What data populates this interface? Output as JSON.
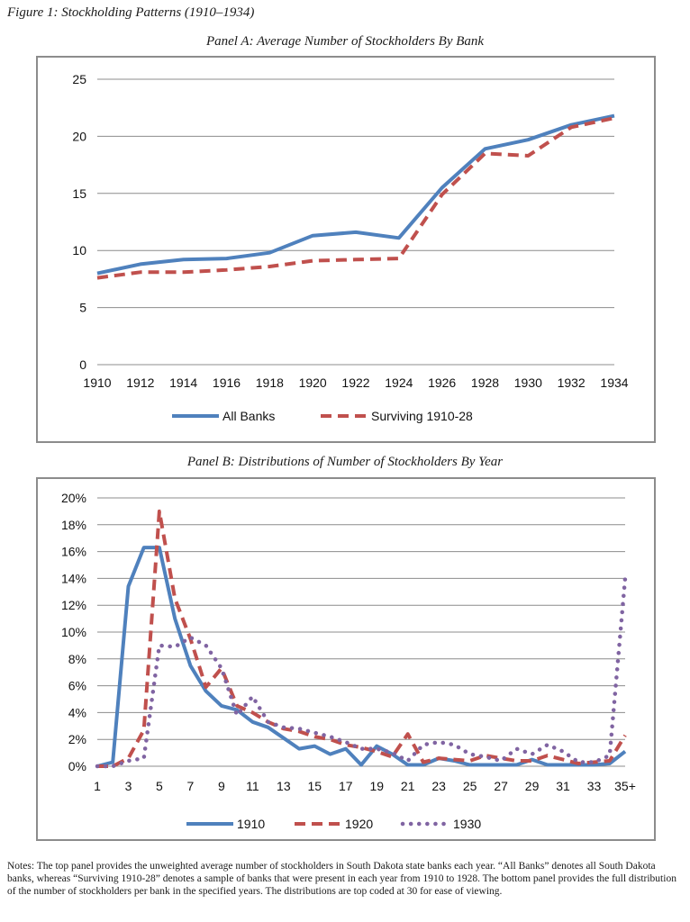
{
  "figure_title": "Figure 1: Stockholding Patterns (1910–1934)",
  "notes": "Notes: The top panel provides the unweighted average number of stockholders in South Dakota state banks each year. “All Banks” denotes all South Dakota banks, whereas “Surviving 1910-28” denotes a sample of banks that were present in each year from 1910 to 1928. The bottom panel provides the full distribution of the number of stockholders per bank in the specified years. The distributions are top coded at 30 for ease of viewing.",
  "colors": {
    "blue": "#4f81bd",
    "red": "#c0504d",
    "purple": "#8064a2",
    "grid": "#8c8c8c",
    "frame": "#8c8c8c"
  },
  "chart_data": [
    {
      "type": "line",
      "title": "Panel A: Average Number of Stockholders By Bank",
      "x": [
        1910,
        1912,
        1914,
        1916,
        1918,
        1920,
        1922,
        1924,
        1926,
        1928,
        1930,
        1932,
        1934
      ],
      "x_tick_labels": [
        "1910",
        "1912",
        "1914",
        "1916",
        "1918",
        "1920",
        "1922",
        "1924",
        "1926",
        "1928",
        "1930",
        "1932",
        "1934"
      ],
      "y_tick_labels": [
        "0",
        "5",
        "10",
        "15",
        "20",
        "25"
      ],
      "ylim": [
        0,
        25
      ],
      "grid": true,
      "legend_position": "bottom",
      "series": [
        {
          "name": "All Banks",
          "style": "solid",
          "color": "#4f81bd",
          "values": [
            8.0,
            8.8,
            9.2,
            9.3,
            9.8,
            11.3,
            11.6,
            11.1,
            15.5,
            18.9,
            19.7,
            21.0,
            21.8
          ]
        },
        {
          "name": "Surviving 1910-28",
          "style": "dashed",
          "color": "#c0504d",
          "values": [
            7.6,
            8.1,
            8.1,
            8.3,
            8.6,
            9.1,
            9.2,
            9.3,
            14.9,
            18.5,
            18.3,
            20.8,
            21.6
          ]
        }
      ]
    },
    {
      "type": "line",
      "title": "Panel B: Distributions of Number of Stockholders By Year",
      "x": [
        1,
        2,
        3,
        4,
        5,
        6,
        7,
        8,
        9,
        10,
        11,
        12,
        13,
        14,
        15,
        16,
        17,
        18,
        19,
        20,
        21,
        22,
        23,
        24,
        25,
        26,
        27,
        28,
        29,
        30,
        31,
        32,
        33,
        34,
        35
      ],
      "x_tick_labels": [
        "1",
        "3",
        "5",
        "7",
        "9",
        "11",
        "13",
        "15",
        "17",
        "19",
        "21",
        "23",
        "25",
        "27",
        "29",
        "31",
        "33",
        "35+"
      ],
      "y_tick_labels": [
        "0%",
        "2%",
        "4%",
        "6%",
        "8%",
        "10%",
        "12%",
        "14%",
        "16%",
        "18%",
        "20%"
      ],
      "ylim": [
        0,
        20
      ],
      "grid": true,
      "legend_position": "bottom",
      "series": [
        {
          "name": "1910",
          "style": "solid",
          "color": "#4f81bd",
          "values": [
            0,
            0.3,
            13.4,
            16.3,
            16.3,
            11.0,
            7.5,
            5.6,
            4.5,
            4.2,
            3.3,
            2.9,
            2.1,
            1.3,
            1.5,
            0.9,
            1.3,
            0.1,
            1.5,
            0.9,
            0.1,
            0.1,
            0.6,
            0.4,
            0.1,
            0.1,
            0.1,
            0.1,
            0.5,
            0.1,
            0.1,
            0.1,
            0.1,
            0.2,
            1.1
          ]
        },
        {
          "name": "1920",
          "style": "dashed",
          "color": "#c0504d",
          "values": [
            0,
            0,
            0.6,
            2.7,
            19.0,
            12.5,
            9.5,
            5.9,
            7.3,
            4.5,
            4.0,
            3.3,
            2.8,
            2.6,
            2.2,
            2.0,
            1.6,
            1.4,
            1.1,
            0.7,
            2.4,
            0.3,
            0.6,
            0.5,
            0.4,
            0.8,
            0.6,
            0.4,
            0.4,
            0.8,
            0.5,
            0.2,
            0.3,
            0.4,
            2.3
          ]
        },
        {
          "name": "1930",
          "style": "dotted",
          "color": "#8064a2",
          "values": [
            0,
            0,
            0.4,
            0.6,
            9.0,
            8.9,
            9.6,
            9.0,
            7.3,
            3.8,
            5.2,
            3.3,
            2.9,
            2.8,
            2.5,
            2.2,
            1.8,
            1.3,
            1.3,
            1.0,
            0.4,
            1.6,
            1.8,
            1.6,
            0.9,
            0.7,
            0.4,
            1.3,
            0.9,
            1.6,
            1.1,
            0.3,
            0.3,
            0.8,
            14.0
          ]
        }
      ]
    }
  ]
}
